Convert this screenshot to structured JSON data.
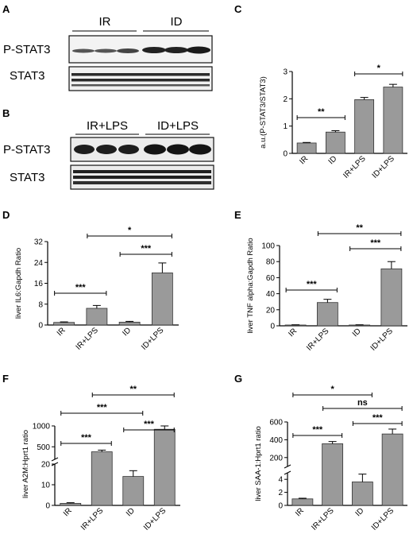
{
  "panels": {
    "A": {
      "label": "A",
      "groups": [
        "IR",
        "ID"
      ],
      "rows": [
        "P-STAT3",
        "STAT3"
      ]
    },
    "B": {
      "label": "B",
      "groups": [
        "IR+LPS",
        "ID+LPS"
      ],
      "rows": [
        "P-STAT3",
        "STAT3"
      ]
    }
  },
  "chart_data": [
    {
      "panel": "C",
      "type": "bar",
      "categories": [
        "IR",
        "ID",
        "IR+LPS",
        "ID+LPS"
      ],
      "values": [
        0.38,
        0.78,
        1.97,
        2.43
      ],
      "errors": [
        0.02,
        0.05,
        0.08,
        0.1
      ],
      "ylabel": "a.u.(P-STAT3/STAT3)",
      "ylim": [
        0,
        3
      ],
      "yticks": [
        "0",
        "1",
        "2",
        "3"
      ],
      "tick_values": [
        0,
        1,
        2,
        3
      ],
      "bar_colors": [
        "#9a9a9a",
        "#9a9a9a",
        "#9a9a9a",
        "#9a9a9a"
      ],
      "comparisons": [
        {
          "from": 0,
          "to": 1,
          "label": "**"
        },
        {
          "from": 2,
          "to": 3,
          "label": "*"
        }
      ]
    },
    {
      "panel": "D",
      "type": "bar",
      "categories": [
        "IR",
        "IR+LPS",
        "ID",
        "ID+LPS"
      ],
      "values": [
        1.0,
        6.4,
        1.1,
        20.0
      ],
      "errors": [
        0.2,
        1.1,
        0.3,
        3.8
      ],
      "ylabel": "liver IL6:Gapdh Ratio",
      "ylim": [
        0,
        32
      ],
      "yticks": [
        "0",
        "8",
        "16",
        "24",
        "32"
      ],
      "tick_values": [
        0,
        8,
        16,
        24,
        32
      ],
      "comparisons": [
        {
          "from": 0,
          "to": 1,
          "label": "***"
        },
        {
          "from": 2,
          "to": 3,
          "label": "***"
        },
        {
          "from": 1,
          "to": 3,
          "label": "*"
        }
      ]
    },
    {
      "panel": "E",
      "type": "bar",
      "categories": [
        "IR",
        "IR+LPS",
        "ID",
        "ID+LPS"
      ],
      "values": [
        1.0,
        29.0,
        1.0,
        71.0
      ],
      "errors": [
        0.3,
        4.0,
        0.3,
        9.0
      ],
      "ylabel": "liver TNF alpha:Gapdh Ratio",
      "ylim": [
        0,
        100
      ],
      "yticks": [
        "0",
        "20",
        "40",
        "60",
        "80",
        "100"
      ],
      "tick_values": [
        0,
        20,
        40,
        60,
        80,
        100
      ],
      "comparisons": [
        {
          "from": 0,
          "to": 1,
          "label": "***"
        },
        {
          "from": 2,
          "to": 3,
          "label": "***"
        },
        {
          "from": 1,
          "to": 3,
          "label": "**"
        }
      ]
    },
    {
      "panel": "F",
      "type": "bar",
      "categories": [
        "IR",
        "IR+LPS",
        "ID",
        "ID+LPS"
      ],
      "values": [
        1.0,
        380,
        14.0,
        920
      ],
      "errors": [
        0.3,
        40,
        2.8,
        160
      ],
      "ylabel": "liver A2M:Hprt1 ratio",
      "y_segments": [
        [
          0,
          20
        ],
        [
          200,
          1000
        ]
      ],
      "yticks": [
        "0",
        "10",
        "20",
        "500",
        "1000"
      ],
      "tick_values": [
        0,
        10,
        20,
        500,
        1000
      ],
      "comparisons": [
        {
          "from": 0,
          "to": 1,
          "label": "***"
        },
        {
          "from": 2,
          "to": 3,
          "label": "***"
        },
        {
          "from": 0,
          "to": 2,
          "label": "***"
        },
        {
          "from": 1,
          "to": 3,
          "label": "**"
        }
      ]
    },
    {
      "panel": "G",
      "type": "bar",
      "categories": [
        "IR",
        "IR+LPS",
        "ID",
        "ID+LPS"
      ],
      "values": [
        1.0,
        355,
        3.6,
        465
      ],
      "errors": [
        0.1,
        25,
        1.2,
        55
      ],
      "ylabel": "liver SAA-1:Hprt1 ratio",
      "y_segments": [
        [
          0,
          5
        ],
        [
          100,
          600
        ]
      ],
      "yticks": [
        "0",
        "2",
        "4",
        "200",
        "400",
        "600"
      ],
      "tick_values": [
        0,
        2,
        4,
        200,
        400,
        600
      ],
      "comparisons": [
        {
          "from": 0,
          "to": 1,
          "label": "***"
        },
        {
          "from": 2,
          "to": 3,
          "label": "***"
        },
        {
          "from": 0,
          "to": 2,
          "label": "*"
        },
        {
          "from": 1,
          "to": 3,
          "label": "ns"
        }
      ]
    }
  ]
}
